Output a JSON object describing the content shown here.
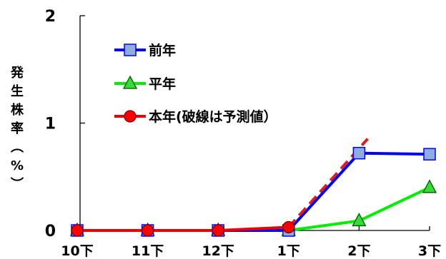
{
  "chart_data": {
    "type": "line",
    "title": "",
    "xlabel": "",
    "ylabel": "発生株率（%）",
    "categories": [
      "10下",
      "11下",
      "12下",
      "1下",
      "2下",
      "3下"
    ],
    "ylim": [
      0,
      2
    ],
    "yticks": [
      "0",
      "1",
      "2"
    ],
    "grid": false,
    "legend_position": "top-left",
    "series": [
      {
        "name": "前年",
        "values": [
          0,
          0,
          0,
          0,
          0.72,
          0.71
        ],
        "color": "#0000ff",
        "marker": "square",
        "marker_fill": "#8eaee0",
        "line_style": "solid"
      },
      {
        "name": "平年",
        "values": [
          0,
          0,
          0,
          0,
          0.09,
          0.4
        ],
        "color": "#00ee00",
        "marker": "triangle",
        "marker_fill": "#33dd33",
        "line_style": "solid"
      },
      {
        "name": "本年(破線は予測値）",
        "values": [
          0,
          0,
          0,
          0.03,
          null,
          null
        ],
        "forecast": {
          "from_index": 3,
          "to_value": 0.8
        },
        "color": "#ee0000",
        "forecast_color": "#e41a1a",
        "marker": "circle",
        "marker_fill": "#ff0000",
        "line_style": "solid"
      }
    ]
  }
}
